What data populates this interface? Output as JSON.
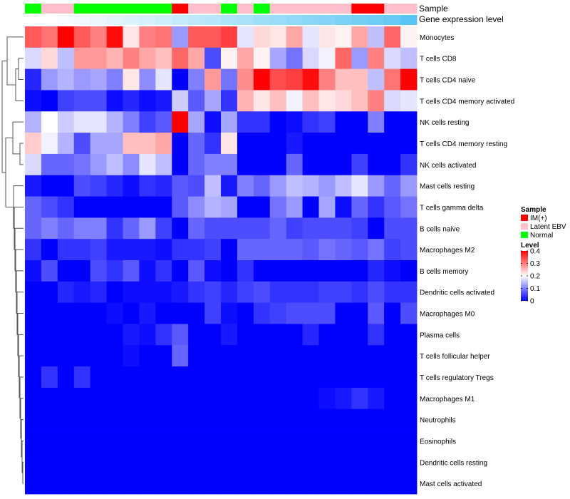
{
  "chart_data": {
    "type": "heatmap",
    "rows": [
      "Monocytes",
      "T cells CD8",
      "T cells CD4 naive",
      "T cells CD4 memory activated",
      "NK cells resting",
      "T cells CD4 memory resting",
      "NK cells activated",
      "Mast cells resting",
      "T cells gamma delta",
      "B cells naive",
      "Macrophages M2",
      "B cells memory",
      "Dendritic cells activated",
      "Macrophages M0",
      "Plasma cells",
      "T cells follicular helper",
      "T cells regulatory  Tregs",
      "Macrophages M1",
      "Neutrophils",
      "Eosinophils",
      "Dendritic cells resting",
      "Mast cells activated"
    ],
    "values": [
      [
        0.33,
        0.31,
        0.4,
        0.33,
        0.3,
        0.39,
        0.22,
        0.3,
        0.31,
        0.12,
        0.33,
        0.33,
        0.35,
        0.18,
        0.23,
        0.22,
        0.27,
        0.18,
        0.22,
        0.21,
        0.27,
        0.15,
        0.32,
        0.21
      ],
      [
        0.17,
        0.23,
        0.15,
        0.28,
        0.28,
        0.26,
        0.3,
        0.27,
        0.25,
        0.32,
        0.27,
        0.06,
        0.21,
        0.27,
        0.21,
        0.13,
        0.09,
        0.17,
        0.19,
        0.32,
        0.12,
        0.3,
        0.17,
        0.15
      ],
      [
        0.03,
        0.12,
        0.14,
        0.12,
        0.13,
        0.1,
        0.22,
        0.11,
        0.18,
        0.0,
        0.1,
        0.28,
        0.09,
        0.29,
        0.4,
        0.34,
        0.35,
        0.39,
        0.3,
        0.25,
        0.25,
        0.15,
        0.31,
        0.4
      ],
      [
        0.01,
        0.0,
        0.05,
        0.06,
        0.06,
        0.01,
        0.03,
        0.01,
        0.02,
        0.16,
        0.07,
        0.13,
        0.04,
        0.26,
        0.22,
        0.25,
        0.19,
        0.25,
        0.22,
        0.23,
        0.25,
        0.3,
        0.17,
        0.18
      ],
      [
        0.14,
        0.2,
        0.16,
        0.18,
        0.18,
        0.14,
        0.1,
        0.05,
        0.07,
        0.4,
        0.13,
        0.01,
        0.13,
        0.04,
        0.04,
        0.0,
        0.01,
        0.04,
        0.05,
        0.0,
        0.0,
        0.1,
        0.0,
        0.0
      ],
      [
        0.24,
        0.19,
        0.14,
        0.06,
        0.13,
        0.13,
        0.25,
        0.25,
        0.27,
        0.0,
        0.08,
        0.04,
        0.22,
        0.0,
        0.0,
        0.0,
        0.02,
        0.0,
        0.0,
        0.0,
        0.0,
        0.0,
        0.0,
        0.0
      ],
      [
        0.17,
        0.08,
        0.08,
        0.09,
        0.12,
        0.15,
        0.11,
        0.18,
        0.15,
        0.0,
        0.08,
        0.1,
        0.1,
        0.0,
        0.0,
        0.0,
        0.08,
        0.0,
        0.0,
        0.0,
        0.05,
        0.0,
        0.0,
        0.04
      ],
      [
        0.02,
        0.0,
        0.0,
        0.06,
        0.05,
        0.03,
        0.01,
        0.04,
        0.03,
        0.07,
        0.06,
        0.15,
        0.02,
        0.1,
        0.08,
        0.12,
        0.15,
        0.14,
        0.12,
        0.15,
        0.18,
        0.12,
        0.08,
        0.12
      ],
      [
        0.08,
        0.06,
        0.04,
        0.0,
        0.0,
        0.0,
        0.0,
        0.0,
        0.0,
        0.07,
        0.11,
        0.14,
        0.13,
        0.0,
        0.0,
        0.09,
        0.12,
        0.0,
        0.13,
        0.01,
        0.08,
        0.04,
        0.07,
        0.09
      ],
      [
        0.08,
        0.1,
        0.08,
        0.1,
        0.1,
        0.04,
        0.08,
        0.12,
        0.05,
        0.0,
        0.08,
        0.06,
        0.06,
        0.06,
        0.06,
        0.08,
        0.05,
        0.06,
        0.06,
        0.06,
        0.05,
        0.0,
        0.06,
        0.06
      ],
      [
        0.04,
        0.0,
        0.04,
        0.04,
        0.05,
        0.02,
        0.02,
        0.02,
        0.01,
        0.04,
        0.04,
        0.05,
        0.0,
        0.08,
        0.08,
        0.08,
        0.08,
        0.07,
        0.09,
        0.08,
        0.07,
        0.09,
        0.05,
        0.06
      ],
      [
        0.01,
        0.06,
        0.0,
        0.0,
        0.06,
        0.04,
        0.07,
        0.01,
        0.04,
        0.0,
        0.07,
        0.01,
        0.0,
        0.04,
        0.0,
        0.0,
        0.0,
        0.0,
        0.0,
        0.0,
        0.0,
        0.03,
        0.01,
        0.0
      ],
      [
        0.0,
        0.0,
        0.03,
        0.02,
        0.03,
        0.0,
        0.01,
        0.01,
        0.01,
        0.02,
        0.04,
        0.05,
        0.03,
        0.05,
        0.06,
        0.04,
        0.04,
        0.04,
        0.05,
        0.05,
        0.04,
        0.06,
        0.04,
        0.04
      ],
      [
        0.0,
        0.0,
        0.0,
        0.0,
        0.0,
        0.01,
        0.0,
        0.02,
        0.0,
        0.0,
        0.0,
        0.05,
        0.01,
        0.0,
        0.04,
        0.05,
        0.06,
        0.06,
        0.06,
        0.0,
        0.0,
        0.07,
        0.0,
        0.06
      ],
      [
        0.0,
        0.0,
        0.0,
        0.0,
        0.0,
        0.0,
        0.02,
        0.01,
        0.04,
        0.07,
        0.0,
        0.0,
        0.02,
        0.0,
        0.0,
        0.0,
        0.0,
        0.03,
        0.0,
        0.0,
        0.0,
        0.04,
        0.0,
        0.0
      ],
      [
        0.0,
        0.0,
        0.0,
        0.0,
        0.0,
        0.0,
        0.01,
        0.0,
        0.0,
        0.08,
        0.0,
        0.0,
        0.0,
        0.0,
        0.0,
        0.0,
        0.0,
        0.0,
        0.0,
        0.0,
        0.0,
        0.0,
        0.0,
        0.0
      ],
      [
        0.0,
        0.04,
        0.0,
        0.04,
        0.0,
        0.0,
        0.0,
        0.0,
        0.0,
        0.0,
        0.0,
        0.0,
        0.0,
        0.0,
        0.0,
        0.0,
        0.0,
        0.0,
        0.0,
        0.0,
        0.0,
        0.0,
        0.0,
        0.0
      ],
      [
        0.0,
        0.0,
        0.0,
        0.0,
        0.0,
        0.0,
        0.0,
        0.0,
        0.0,
        0.0,
        0.0,
        0.0,
        0.0,
        0.0,
        0.0,
        0.0,
        0.0,
        0.0,
        0.01,
        0.02,
        0.04,
        0.02,
        0.0,
        0.0
      ],
      [
        0.0,
        0.0,
        0.0,
        0.0,
        0.0,
        0.0,
        0.0,
        0.0,
        0.0,
        0.0,
        0.0,
        0.0,
        0.0,
        0.0,
        0.0,
        0.0,
        0.0,
        0.0,
        0.0,
        0.0,
        0.0,
        0.0,
        0.0,
        0.0
      ],
      [
        0.0,
        0.0,
        0.0,
        0.0,
        0.0,
        0.0,
        0.0,
        0.0,
        0.0,
        0.0,
        0.0,
        0.0,
        0.0,
        0.0,
        0.0,
        0.0,
        0.0,
        0.0,
        0.0,
        0.0,
        0.0,
        0.0,
        0.0,
        0.0
      ],
      [
        0.0,
        0.0,
        0.0,
        0.0,
        0.0,
        0.0,
        0.0,
        0.0,
        0.0,
        0.0,
        0.0,
        0.0,
        0.0,
        0.0,
        0.0,
        0.0,
        0.0,
        0.0,
        0.0,
        0.0,
        0.0,
        0.0,
        0.0,
        0.0
      ],
      [
        0.0,
        0.0,
        0.0,
        0.0,
        0.0,
        0.0,
        0.0,
        0.0,
        0.0,
        0.0,
        0.0,
        0.0,
        0.0,
        0.0,
        0.0,
        0.0,
        0.0,
        0.0,
        0.0,
        0.0,
        0.0,
        0.0,
        0.0,
        0.0
      ]
    ],
    "annotation_tracks": [
      {
        "name": "Sample",
        "values": [
          "Normal",
          "Latent EBV",
          "Latent EBV",
          "Normal",
          "Normal",
          "Normal",
          "Normal",
          "Normal",
          "Normal",
          "IM(+)",
          "Latent EBV",
          "Latent EBV",
          "Normal",
          "Latent EBV",
          "Normal",
          "Latent EBV",
          "Latent EBV",
          "Latent EBV",
          "Latent EBV",
          "Latent EBV",
          "IM(+)",
          "IM(+)",
          "Latent EBV",
          "Latent EBV"
        ]
      },
      {
        "name": "Gene expression level",
        "values": [
          0.0,
          0.0,
          0.05,
          0.09,
          0.13,
          0.17,
          0.22,
          0.26,
          0.3,
          0.35,
          0.39,
          0.43,
          0.48,
          0.52,
          0.57,
          0.61,
          0.65,
          0.7,
          0.74,
          0.78,
          0.83,
          0.87,
          0.91,
          1.0
        ]
      }
    ],
    "legend": {
      "sample_title": "Sample",
      "sample_entries": [
        {
          "label": "IM(+)",
          "color": "#ff0000"
        },
        {
          "label": "Latent EBV",
          "color": "#ffc0cb"
        },
        {
          "label": "Normal",
          "color": "#00ff00"
        }
      ],
      "level_title": "Level",
      "level_ticks": [
        "0.4",
        "0.3",
        "0.2",
        "0.1",
        "0"
      ],
      "level_tick_values": [
        0.4,
        0.3,
        0.2,
        0.1,
        0.0
      ],
      "range": [
        0,
        0.4
      ]
    },
    "color_scale": {
      "low": "#0000ff",
      "mid": "#ffffff",
      "high": "#ff0000",
      "mid_value": 0.2
    },
    "gene_level_colors": {
      "low": "#ffffff",
      "high": "#57c5f3"
    },
    "row_dendrogram": true,
    "column_dendrogram": false
  }
}
